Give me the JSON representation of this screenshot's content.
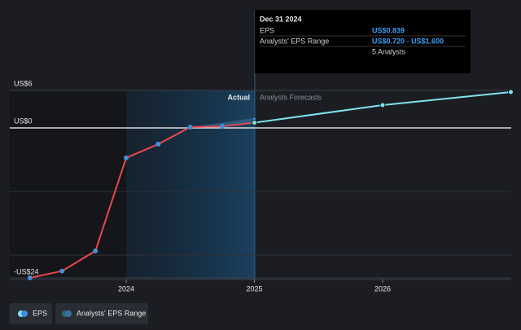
{
  "chart_data": {
    "type": "line",
    "yticks": [
      {
        "value": 6,
        "label": "US$6"
      },
      {
        "value": 0,
        "label": "US$0"
      },
      {
        "value": -24,
        "label": "-US$24"
      }
    ],
    "ylim": [
      -24.5,
      7
    ],
    "xticks": [
      2024,
      2025,
      2026
    ],
    "xlim": [
      2023.09,
      2027.0
    ],
    "region_labels": [
      "Actual",
      "Analysts Forecasts"
    ],
    "series": [
      {
        "name": "EPS",
        "color": "#e8474f",
        "marker_color": "#3d8fe0",
        "x": [
          2023.25,
          2023.5,
          2023.76,
          2024.0,
          2024.25,
          2024.5,
          2024.75,
          2025.0
        ],
        "values": [
          -24,
          -22.9,
          -19.7,
          -4.8,
          -2.6,
          0.13,
          0.26,
          0.839
        ]
      },
      {
        "name": "Analysts' EPS Range",
        "color": "#7ee3f0",
        "x": [
          2025.0,
          2026.0,
          2027.0
        ],
        "values": [
          0.839,
          3.65,
          5.74
        ]
      }
    ],
    "eps_range": {
      "x": 2025.0,
      "low": 0.72,
      "high": 1.6
    },
    "tooltip": {
      "date": "Dec 31 2024",
      "rows": [
        [
          "EPS",
          "US$0.839"
        ],
        [
          "Analysts' EPS Range",
          "US$0.720 - US$1.600"
        ],
        [
          "",
          "5 Analysts"
        ]
      ]
    }
  }
}
